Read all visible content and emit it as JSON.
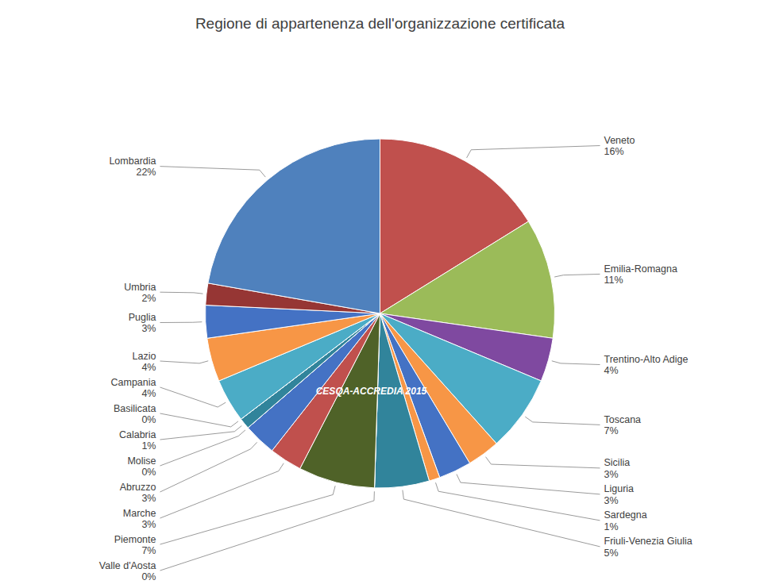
{
  "chart_data": {
    "type": "pie",
    "title": "Regione di appartenenza dell'organizzazione certificata",
    "categories": [
      "Veneto",
      "Emilia-Romagna",
      "Trentino-Alto Adige",
      "Toscana",
      "Sicilia",
      "Liguria",
      "Sardegna",
      "Friuli-Venezia Giulia",
      "Valle d'Aosta",
      "Piemonte",
      "Marche",
      "Abruzzo",
      "Molise",
      "Calabria",
      "Basilicata",
      "Campania",
      "Lazio",
      "Puglia",
      "Umbria",
      "Lombardia"
    ],
    "values": [
      16,
      11,
      4,
      7,
      3,
      3,
      1,
      5,
      0,
      7,
      3,
      3,
      0,
      1,
      0,
      4,
      4,
      3,
      2,
      22
    ],
    "value_labels": [
      "16%",
      "11%",
      "4%",
      "7%",
      "3%",
      "3%",
      "1%",
      "5%",
      "0%",
      "7%",
      "3%",
      "3%",
      "0%",
      "1%",
      "0%",
      "4%",
      "4%",
      "3%",
      "2%",
      "22%"
    ],
    "colors": [
      "#c0504d",
      "#9bbb59",
      "#7f49a0",
      "#4bacc6",
      "#f79646",
      "#4472c4",
      "#f79646",
      "#31849b",
      "#f2f2f2",
      "#4f6228",
      "#c0504d",
      "#4472c4",
      "#f2f2f2",
      "#31849b",
      "#9bbb59",
      "#4bacc6",
      "#f79646",
      "#4472c4",
      "#963634",
      "#4f81bd"
    ],
    "data_labels": true,
    "annotations": [
      "CESQA-ACCREDIA 2015"
    ]
  }
}
